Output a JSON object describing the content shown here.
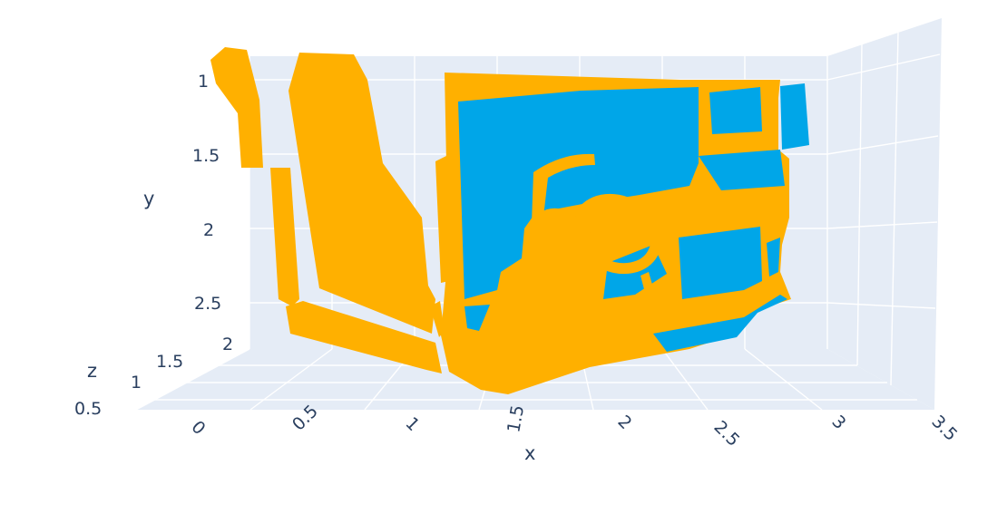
{
  "chart_data": {
    "type": "scatter3d",
    "colors": {
      "scene_bg": "#e5ecf6",
      "grid": "#ffffff",
      "text": "#2a3f5f",
      "series_orange": "#ffb000",
      "series_blue": "#00a6e8"
    },
    "axes": {
      "x": {
        "title": "x",
        "ticks": [
          "0",
          "0.5",
          "1",
          "1.5",
          "2",
          "2.5",
          "3",
          "3.5"
        ],
        "range": [
          0,
          3.5
        ]
      },
      "y": {
        "title": "y",
        "ticks": [
          "1",
          "1.5",
          "2",
          "2.5"
        ],
        "range": [
          1,
          2.5
        ],
        "reversed": true
      },
      "z": {
        "title": "z",
        "ticks": [
          "0.5",
          "1",
          "1.5",
          "2"
        ],
        "range": [
          0.5,
          2
        ]
      }
    },
    "series": [
      {
        "color": "#ffb000"
      },
      {
        "color": "#00a6e8"
      }
    ]
  }
}
